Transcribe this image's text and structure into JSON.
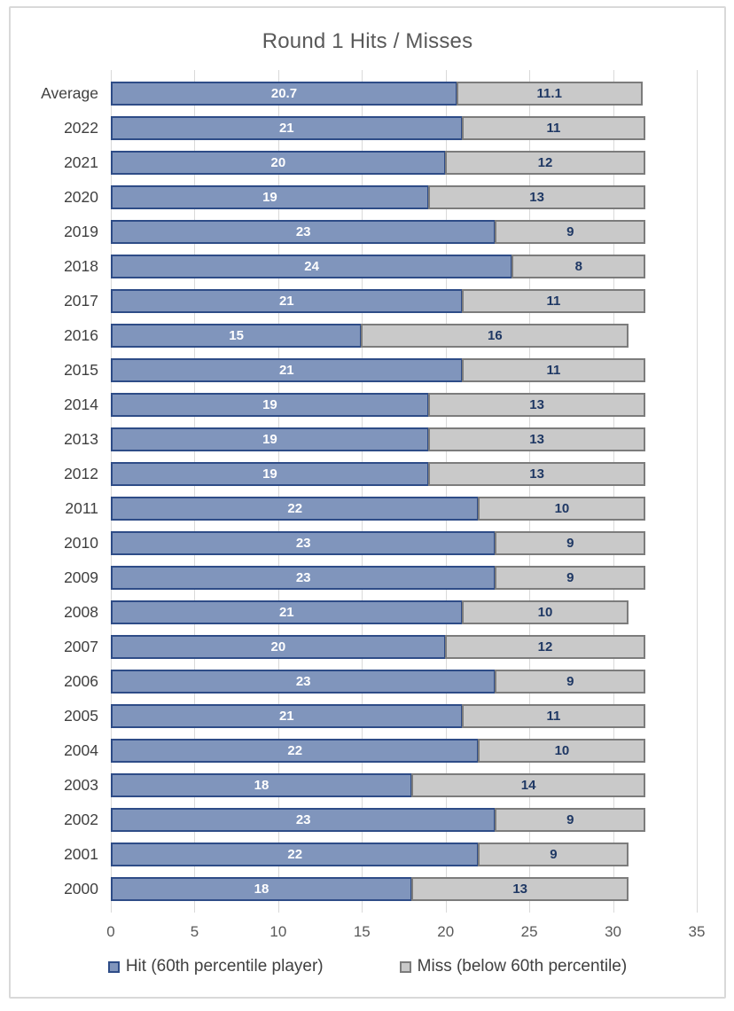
{
  "title": "Round 1 Hits / Misses",
  "colors": {
    "hit_fill": "#8095BC",
    "hit_border": "#2E4C87",
    "miss_fill": "#C9C9C9",
    "miss_border": "#7C7C7C",
    "label_on_hit": "#FFFFFF",
    "label_on_miss": "#1F3864",
    "gridline": "#D9D9D9",
    "axis_text": "#595959",
    "category_text": "#404040"
  },
  "chart_data": {
    "type": "bar",
    "orientation": "horizontal",
    "stacked": true,
    "title": "Round 1 Hits / Misses",
    "categories": [
      "Average",
      "2022",
      "2021",
      "2020",
      "2019",
      "2018",
      "2017",
      "2016",
      "2015",
      "2014",
      "2013",
      "2012",
      "2011",
      "2010",
      "2009",
      "2008",
      "2007",
      "2006",
      "2005",
      "2004",
      "2003",
      "2002",
      "2001",
      "2000"
    ],
    "series": [
      {
        "name": "Hit (60th percentile player)",
        "values": [
          20.7,
          21,
          20,
          19,
          23,
          24,
          21,
          15,
          21,
          19,
          19,
          19,
          22,
          23,
          23,
          21,
          20,
          23,
          21,
          22,
          18,
          23,
          22,
          18
        ]
      },
      {
        "name": "Miss (below 60th percentile)",
        "values": [
          11.1,
          11,
          12,
          13,
          9,
          8,
          11,
          16,
          11,
          13,
          13,
          13,
          10,
          9,
          9,
          10,
          12,
          9,
          11,
          10,
          14,
          9,
          9,
          13
        ]
      }
    ],
    "xlim": [
      0,
      35
    ],
    "x_ticks": [
      0,
      5,
      10,
      15,
      20,
      25,
      30,
      35
    ],
    "grid": "vertical",
    "legend_position": "bottom",
    "data_labels": true
  }
}
